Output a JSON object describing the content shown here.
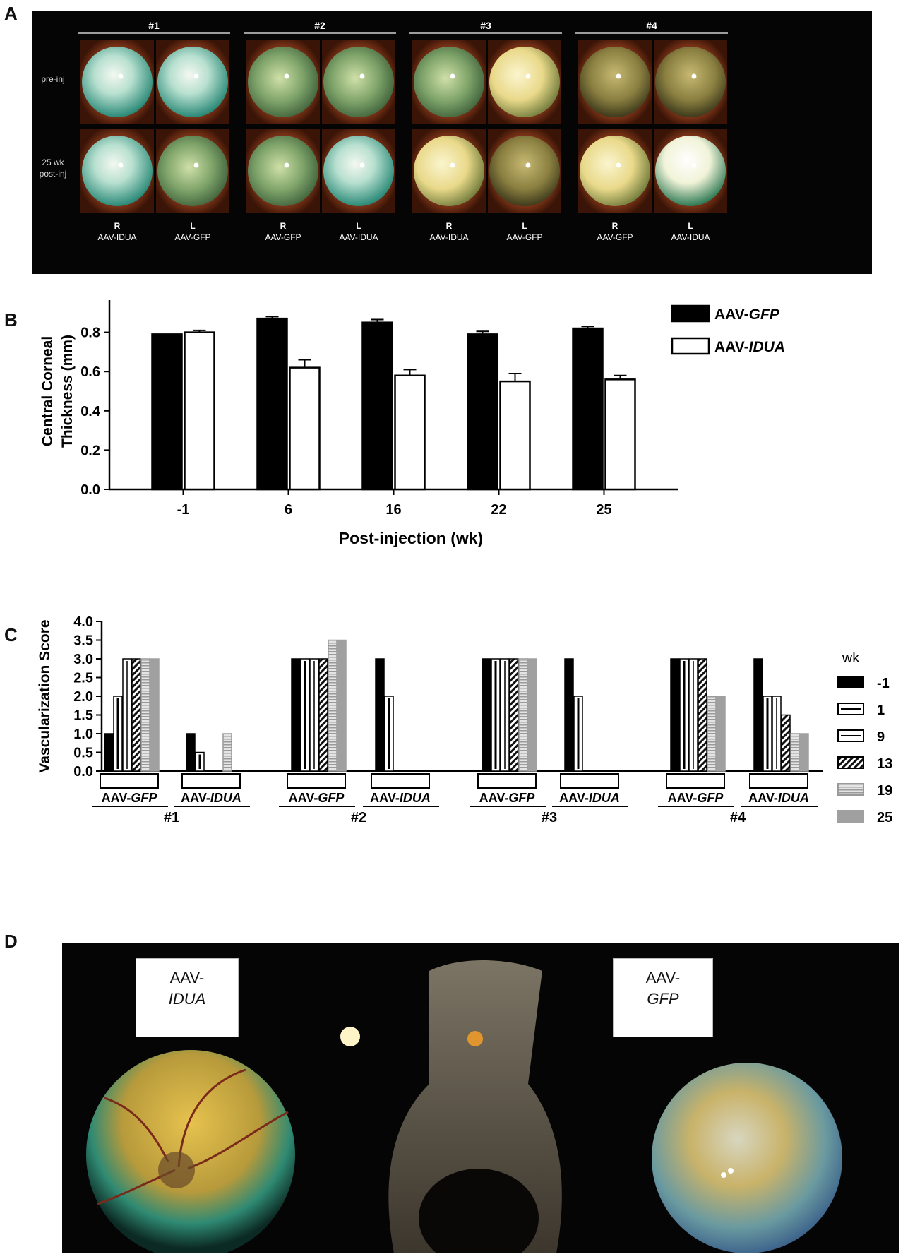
{
  "panel_letters": {
    "a": "A",
    "b": "B",
    "c": "C",
    "d": "D"
  },
  "panel_a": {
    "groups": [
      "#1",
      "#2",
      "#3",
      "#4"
    ],
    "rows": [
      "pre-inj",
      "25 wk post-inj"
    ],
    "columns": [
      {
        "side": "R",
        "vector": "AAV-IDUA"
      },
      {
        "side": "L",
        "vector": "AAV-GFP"
      },
      {
        "side": "R",
        "vector": "AAV-GFP"
      },
      {
        "side": "L",
        "vector": "AAV-IDUA"
      },
      {
        "side": "R",
        "vector": "AAV-IDUA"
      },
      {
        "side": "L",
        "vector": "AAV-GFP"
      },
      {
        "side": "R",
        "vector": "AAV-GFP"
      },
      {
        "side": "L",
        "vector": "AAV-IDUA"
      }
    ]
  },
  "panel_d": {
    "left_label": [
      "AAV-",
      "IDUA"
    ],
    "right_label": [
      "AAV-",
      "GFP"
    ]
  },
  "colors": {
    "gfp": "#000000",
    "idua": "#ffffff",
    "wk19": "#d8d8d8",
    "wk25": "#a0a0a0"
  },
  "chart_data": [
    {
      "type": "bar",
      "xlabel": "Post-injection (wk)",
      "ylabel": "Central Corneal Thickness (mm)",
      "ylabel_lines": [
        "Central Corneal",
        "Thickness (mm)"
      ],
      "ylim": [
        0,
        1.0
      ],
      "yticks": [
        "0.0",
        "0.2",
        "0.4",
        "0.6",
        "0.8",
        "1.0"
      ],
      "categories": [
        "-1",
        "6",
        "16",
        "22",
        "25"
      ],
      "series": [
        {
          "name": "AAV-GFP",
          "name_parts": [
            "AAV-",
            "GFP"
          ],
          "values": [
            0.79,
            0.87,
            0.85,
            0.79,
            0.82
          ],
          "errors": [
            0,
            0.01,
            0.015,
            0.015,
            0.01
          ]
        },
        {
          "name": "AAV-IDUA",
          "name_parts": [
            "AAV-",
            "IDUA"
          ],
          "values": [
            0.8,
            0.62,
            0.58,
            0.55,
            0.56
          ],
          "errors": [
            0.01,
            0.04,
            0.03,
            0.04,
            0.02
          ]
        }
      ],
      "legend": "top-right",
      "grid": false
    },
    {
      "type": "bar",
      "ylabel": "Vascularization Score",
      "ylim": [
        0,
        4.0
      ],
      "yticks": [
        "0.0",
        "0.5",
        "1.0",
        "1.5",
        "2.0",
        "2.5",
        "3.0",
        "3.5",
        "4.0"
      ],
      "legend_title": "wk",
      "series_names": [
        "-1",
        "1",
        "9",
        "13",
        "19",
        "25"
      ],
      "groups": [
        {
          "animal": "#1",
          "subgroups": [
            {
              "vector_parts": [
                "AAV-",
                "GFP"
              ],
              "values": [
                1.0,
                2.0,
                3.0,
                3.0,
                3.0,
                3.0
              ]
            },
            {
              "vector_parts": [
                "AAV-",
                "IDUA"
              ],
              "values": [
                1.0,
                0.5,
                0,
                0,
                1.0,
                0
              ]
            }
          ]
        },
        {
          "animal": "#2",
          "subgroups": [
            {
              "vector_parts": [
                "AAV-",
                "GFP"
              ],
              "values": [
                3.0,
                3.0,
                3.0,
                3.0,
                3.5,
                3.5
              ]
            },
            {
              "vector_parts": [
                "AAV-",
                "IDUA"
              ],
              "values": [
                3.0,
                2.0,
                0,
                0,
                0,
                0
              ]
            }
          ]
        },
        {
          "animal": "#3",
          "subgroups": [
            {
              "vector_parts": [
                "AAV-",
                "GFP"
              ],
              "values": [
                3.0,
                3.0,
                3.0,
                3.0,
                3.0,
                3.0
              ]
            },
            {
              "vector_parts": [
                "AAV-",
                "IDUA"
              ],
              "values": [
                3.0,
                2.0,
                0,
                0,
                0,
                0
              ]
            }
          ]
        },
        {
          "animal": "#4",
          "subgroups": [
            {
              "vector_parts": [
                "AAV-",
                "GFP"
              ],
              "values": [
                3.0,
                3.0,
                3.0,
                3.0,
                2.0,
                2.0
              ]
            },
            {
              "vector_parts": [
                "AAV-",
                "IDUA"
              ],
              "values": [
                3.0,
                2.0,
                2.0,
                1.5,
                1.0,
                1.0
              ]
            }
          ]
        }
      ],
      "legend": "right",
      "grid": false
    }
  ]
}
